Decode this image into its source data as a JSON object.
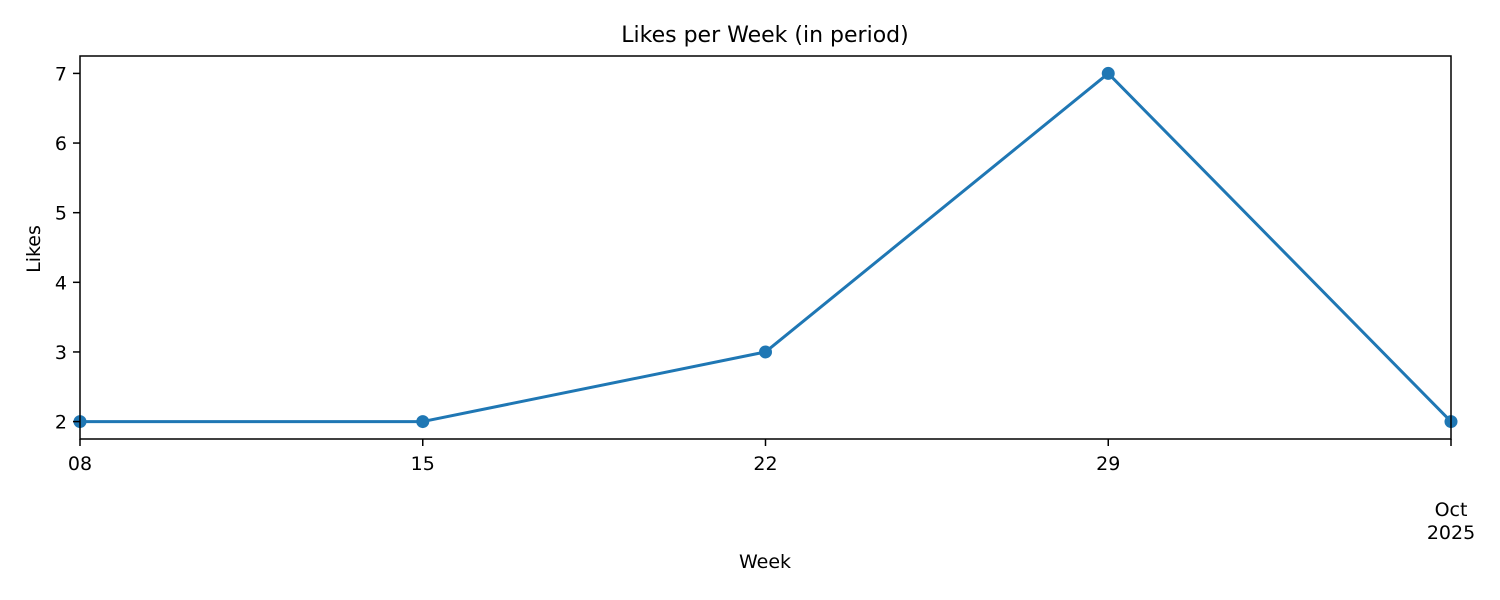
{
  "chart_data": {
    "type": "line",
    "title": "Likes per Week (in period)",
    "xlabel": "Week",
    "ylabel": "Likes",
    "x": [
      "2025-09-08",
      "2025-09-15",
      "2025-09-22",
      "2025-09-29",
      "2025-10-06"
    ],
    "x_ticks": [
      {
        "x": "2025-09-08",
        "label": "08"
      },
      {
        "x": "2025-09-15",
        "label": "15"
      },
      {
        "x": "2025-09-22",
        "label": "22"
      },
      {
        "x": "2025-09-29",
        "label": "29"
      },
      {
        "x": "2025-10-06",
        "label": "Oct\n2025"
      }
    ],
    "y_ticks": [
      2,
      3,
      4,
      5,
      6,
      7
    ],
    "ylim": [
      1.75,
      7.25
    ],
    "grid": false,
    "series": [
      {
        "values": [
          2,
          2,
          3,
          7,
          2
        ],
        "color": "#1f77b4",
        "marker": "circle"
      }
    ]
  }
}
